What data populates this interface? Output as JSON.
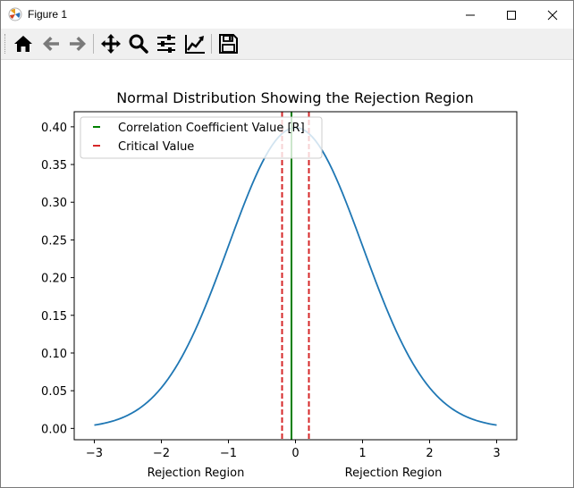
{
  "window": {
    "title": "Figure 1",
    "controls": {
      "minimize": "minimize",
      "maximize": "maximize",
      "close": "close"
    }
  },
  "toolbar": {
    "buttons": [
      {
        "name": "home",
        "icon": "home-icon"
      },
      {
        "name": "back",
        "icon": "arrow-left-icon"
      },
      {
        "name": "forward",
        "icon": "arrow-right-icon"
      },
      {
        "name": "pan",
        "icon": "move-arrows-icon"
      },
      {
        "name": "zoom",
        "icon": "magnifier-icon"
      },
      {
        "name": "configure-subplots",
        "icon": "sliders-icon"
      },
      {
        "name": "edit-axis",
        "icon": "line-chart-icon"
      },
      {
        "name": "save",
        "icon": "floppy-disk-icon"
      }
    ]
  },
  "chart_data": {
    "type": "line",
    "title": "Normal Distribution Showing the Rejection Region",
    "xlabel_left": "Rejection Region",
    "xlabel_right": "Rejection Region",
    "ylabel": "",
    "xlim": [
      -3.3,
      3.3
    ],
    "ylim": [
      -0.015,
      0.42
    ],
    "x_ticks": [
      -3,
      -2,
      -1,
      0,
      1,
      2,
      3
    ],
    "x_tick_labels": [
      "−3",
      "−2",
      "−1",
      "0",
      "1",
      "2",
      "3"
    ],
    "y_ticks": [
      0.0,
      0.05,
      0.1,
      0.15,
      0.2,
      0.25,
      0.3,
      0.35,
      0.4
    ],
    "y_tick_labels": [
      "0.00",
      "0.05",
      "0.10",
      "0.15",
      "0.20",
      "0.25",
      "0.30",
      "0.35",
      "0.40"
    ],
    "curve": {
      "name": "",
      "color": "#1f77b4",
      "x": [
        -3.0,
        -2.75,
        -2.5,
        -2.25,
        -2.0,
        -1.75,
        -1.5,
        -1.25,
        -1.0,
        -0.75,
        -0.5,
        -0.25,
        0.0,
        0.25,
        0.5,
        0.75,
        1.0,
        1.25,
        1.5,
        1.75,
        2.0,
        2.25,
        2.5,
        2.75,
        3.0
      ],
      "y": [
        0.0044,
        0.0091,
        0.0175,
        0.0317,
        0.054,
        0.0863,
        0.1295,
        0.1826,
        0.242,
        0.3011,
        0.3521,
        0.3867,
        0.3989,
        0.3867,
        0.3521,
        0.3011,
        0.242,
        0.1826,
        0.1295,
        0.0863,
        0.054,
        0.0317,
        0.0175,
        0.0091,
        0.0044
      ]
    },
    "vlines": [
      {
        "name": "Correlation Coefficient Value [R]",
        "x": -0.06,
        "color": "#008000",
        "style": "solid"
      },
      {
        "name": "Critical Value",
        "x": -0.2,
        "color": "#d62728",
        "style": "dashed"
      },
      {
        "name": "Critical Value",
        "x": 0.2,
        "color": "#d62728",
        "style": "dashed"
      }
    ],
    "legend": {
      "placement": "upper-left",
      "entries": [
        {
          "label": "Correlation Coefficient Value [R]",
          "color": "#008000"
        },
        {
          "label": "Critical Value",
          "color": "#d62728"
        }
      ]
    },
    "grid": false
  }
}
